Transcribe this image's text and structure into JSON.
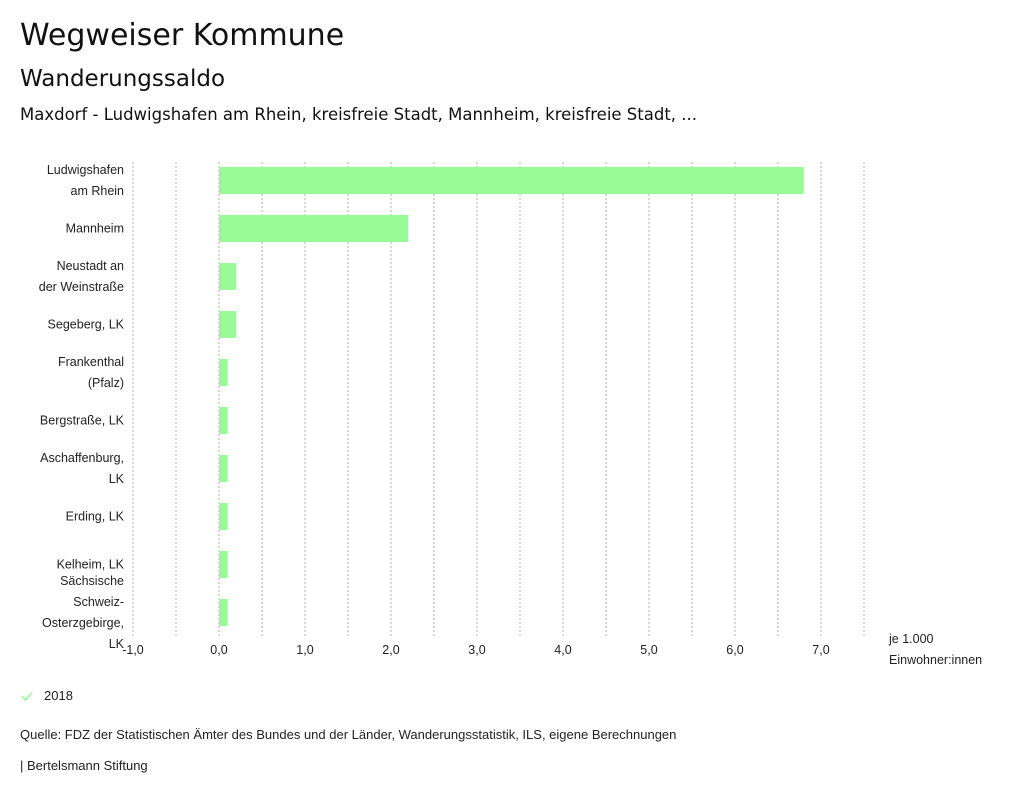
{
  "header": {
    "title": "Wegweiser Kommune",
    "subtitle": "Wanderungssaldo",
    "selection": "Maxdorf - Ludwigshafen am Rhein, kreisfreie Stadt, Mannheim, kreisfreie Stadt, ..."
  },
  "chart_data": {
    "type": "bar",
    "orientation": "horizontal",
    "title": "Wanderungssaldo",
    "categories": [
      [
        "Ludwigshafen",
        "am Rhein"
      ],
      [
        "Mannheim"
      ],
      [
        "Neustadt an",
        "der Weinstraße"
      ],
      [
        "Segeberg, LK"
      ],
      [
        "Frankenthal",
        "(Pfalz)"
      ],
      [
        "Bergstraße, LK"
      ],
      [
        "Aschaffenburg,",
        "LK"
      ],
      [
        "Erding, LK"
      ],
      [
        "Kelheim, LK"
      ],
      [
        "Sächsische",
        "Schweiz-",
        "Osterzgebirge,",
        "LK"
      ]
    ],
    "series": [
      {
        "name": "2018",
        "color": "#98fb98",
        "values": [
          6.8,
          2.2,
          0.2,
          0.2,
          0.1,
          0.1,
          0.1,
          0.1,
          0.1,
          0.1
        ]
      }
    ],
    "xlim": [
      -1.0,
      7.5
    ],
    "xticks": [
      -1.0,
      0.0,
      1.0,
      2.0,
      3.0,
      4.0,
      5.0,
      6.0,
      7.0
    ],
    "xtick_labels": [
      "-1,0",
      "0,0",
      "1,0",
      "2,0",
      "3,0",
      "4,0",
      "5,0",
      "6,0",
      "7,0"
    ],
    "gridlines": [
      -1.0,
      -0.5,
      0.0,
      0.5,
      1.0,
      1.5,
      2.0,
      2.5,
      3.0,
      3.5,
      4.0,
      4.5,
      5.0,
      5.5,
      6.0,
      6.5,
      7.0,
      7.5
    ],
    "grid": true,
    "xlabel": [
      "je 1.000",
      "Einwohner:innen"
    ],
    "ylabel": "",
    "legend_position": "bottom-left"
  },
  "legend": {
    "label": "2018",
    "icon": "check-icon",
    "color": "#98fb98"
  },
  "footer": {
    "source": "Quelle: FDZ der Statistischen Ämter des Bundes und der Länder, Wanderungsstatistik, ILS, eigene Berechnungen",
    "credit": "| Bertelsmann Stiftung"
  }
}
